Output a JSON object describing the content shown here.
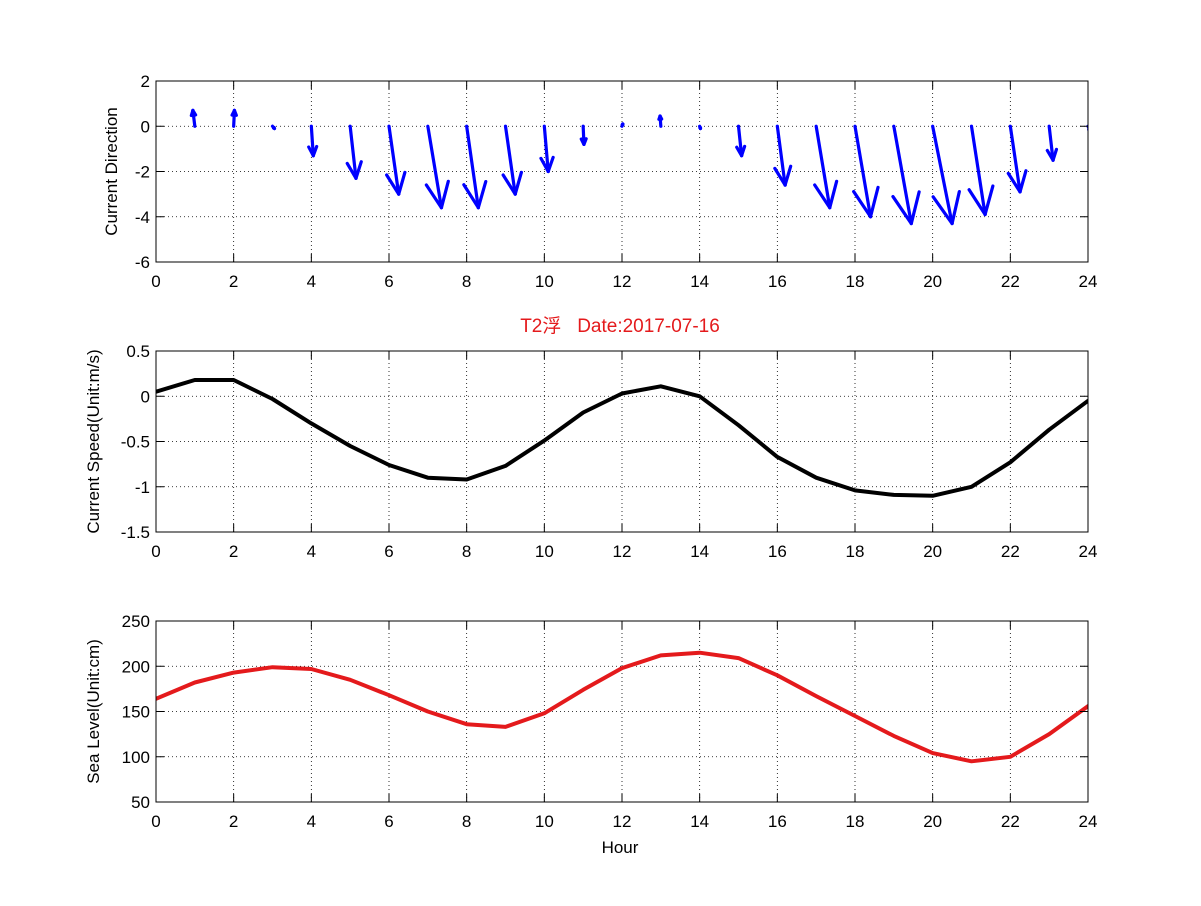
{
  "figure": {
    "title": "T2浮   Date:2017-07-16",
    "title_color": "#e41a1c"
  },
  "chart_data": [
    {
      "type": "quiver",
      "ylabel": "Current Direction",
      "xlim": [
        0,
        24
      ],
      "ylim": [
        -6,
        2
      ],
      "xticks": [
        0,
        2,
        4,
        6,
        8,
        10,
        12,
        14,
        16,
        18,
        20,
        22,
        24
      ],
      "yticks": [
        2,
        0,
        -2,
        -4,
        -6
      ],
      "grid": true,
      "color": "#0000ff",
      "x": [
        1,
        2,
        3,
        4,
        5,
        6,
        7,
        8,
        9,
        10,
        11,
        12,
        13,
        14,
        15,
        16,
        17,
        18,
        19,
        20,
        21,
        22,
        23,
        24
      ],
      "u": [
        -0.05,
        0.02,
        0.05,
        0.05,
        0.15,
        0.25,
        0.35,
        0.3,
        0.25,
        0.1,
        0.02,
        0.02,
        -0.02,
        0.02,
        0.08,
        0.2,
        0.35,
        0.4,
        0.45,
        0.5,
        0.35,
        0.25,
        0.1,
        0.05
      ],
      "v": [
        0.7,
        0.7,
        -0.1,
        -1.3,
        -2.3,
        -3.0,
        -3.6,
        -3.6,
        -3.0,
        -2.0,
        -0.8,
        0.1,
        0.45,
        -0.1,
        -1.3,
        -2.6,
        -3.6,
        -4.0,
        -4.3,
        -4.3,
        -3.9,
        -2.9,
        -1.5,
        -0.2
      ]
    },
    {
      "type": "line",
      "ylabel": "Current Speed(Unit:m/s)",
      "xlim": [
        0,
        24
      ],
      "ylim": [
        -1.5,
        0.5
      ],
      "xticks": [
        0,
        2,
        4,
        6,
        8,
        10,
        12,
        14,
        16,
        18,
        20,
        22,
        24
      ],
      "yticks": [
        0.5,
        0,
        -0.5,
        -1,
        -1.5
      ],
      "grid": true,
      "color": "#000000",
      "x": [
        0,
        1,
        2,
        3,
        4,
        5,
        6,
        7,
        8,
        9,
        10,
        11,
        12,
        13,
        14,
        15,
        16,
        17,
        18,
        19,
        20,
        21,
        22,
        23,
        24
      ],
      "y": [
        0.05,
        0.18,
        0.18,
        -0.03,
        -0.3,
        -0.55,
        -0.76,
        -0.9,
        -0.92,
        -0.77,
        -0.49,
        -0.18,
        0.03,
        0.11,
        0.0,
        -0.32,
        -0.67,
        -0.9,
        -1.04,
        -1.09,
        -1.1,
        -1.0,
        -0.73,
        -0.37,
        -0.05
      ]
    },
    {
      "type": "line",
      "ylabel": "Sea Level(Unit:cm)",
      "xlabel": "Hour",
      "xlim": [
        0,
        24
      ],
      "ylim": [
        50,
        250
      ],
      "xticks": [
        0,
        2,
        4,
        6,
        8,
        10,
        12,
        14,
        16,
        18,
        20,
        22,
        24
      ],
      "yticks": [
        250,
        200,
        150,
        100,
        50
      ],
      "grid": true,
      "color": "#e41a1c",
      "x": [
        0,
        1,
        2,
        3,
        4,
        5,
        6,
        7,
        8,
        9,
        10,
        11,
        12,
        13,
        14,
        15,
        16,
        17,
        18,
        19,
        20,
        21,
        22,
        23,
        24
      ],
      "y": [
        164,
        182,
        193,
        199,
        197,
        185,
        168,
        150,
        136,
        133,
        148,
        174,
        198,
        212,
        215,
        209,
        190,
        167,
        145,
        123,
        104,
        95,
        100,
        125,
        156
      ]
    }
  ]
}
